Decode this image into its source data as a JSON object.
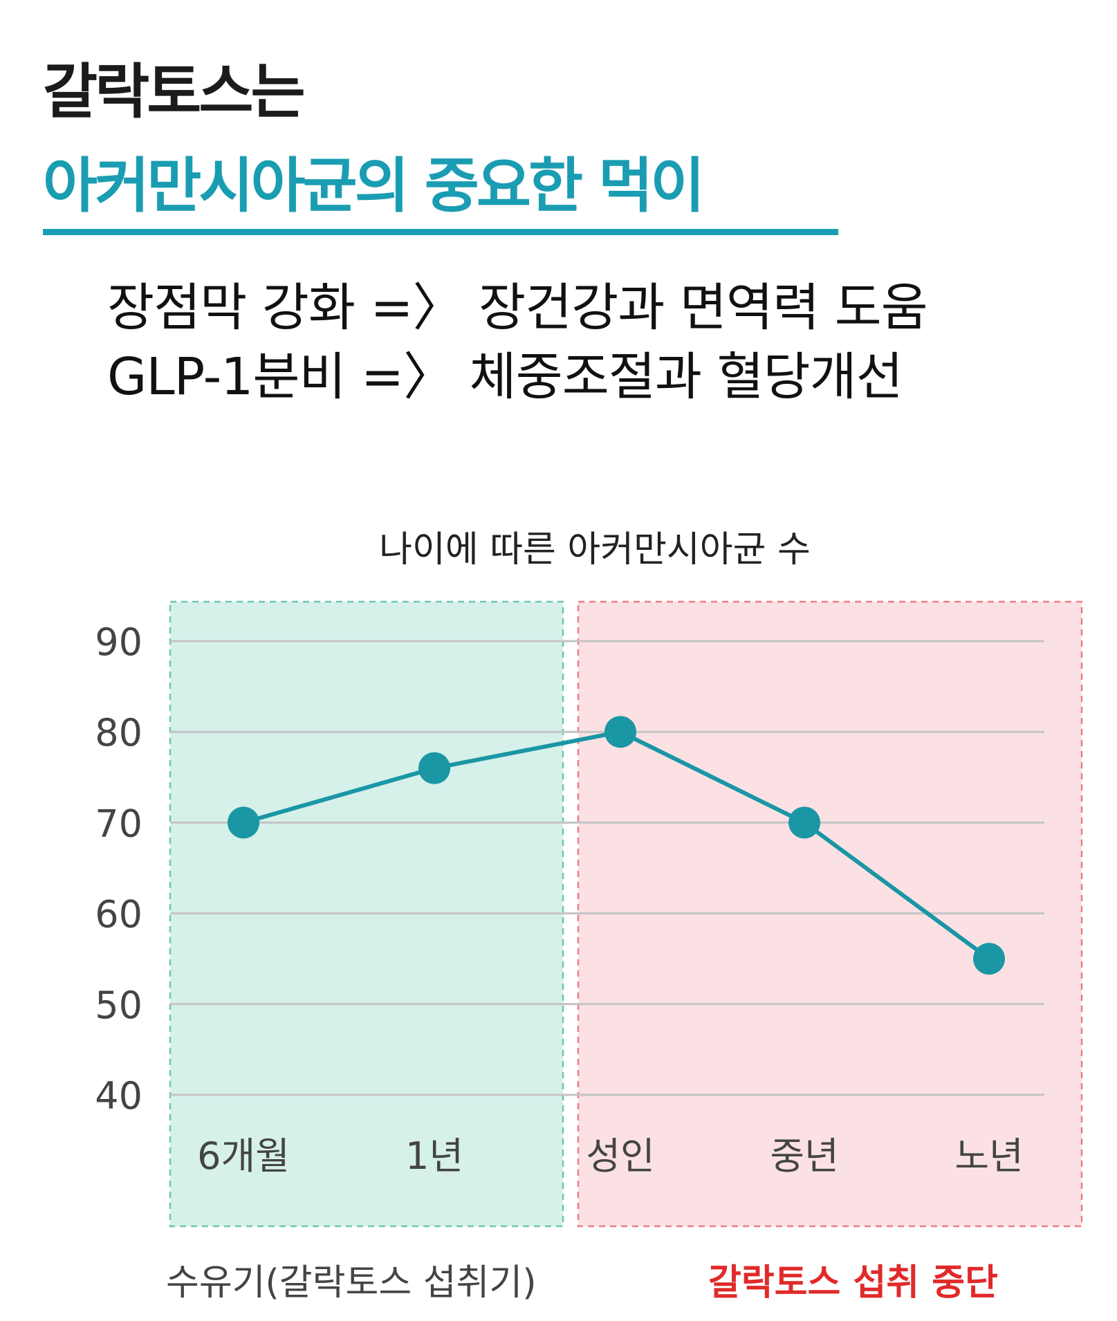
{
  "heading": {
    "line1": "갈락토스는",
    "line2": "아커만시아균의 중요한 먹이"
  },
  "subtitle": {
    "line1": "장점막 강화 =〉 장건강과 면역력 도움",
    "line2": "GLP-1분비 =〉 체중조절과 혈당개선"
  },
  "colors": {
    "accent": "#1a9db2",
    "line": "#1a96a5",
    "green_zone": "#d6f0ea",
    "green_border": "#6cc6b2",
    "red_zone": "#fbe1e3",
    "red_border": "#ec7d84",
    "red_text": "#e02a2a",
    "grid": "#c4c4c4"
  },
  "chart_data": {
    "type": "line",
    "title": "나이에 따른 아커만시아균 수",
    "categories": [
      "6개월",
      "1년",
      "성인",
      "중년",
      "노년"
    ],
    "values": [
      70,
      76,
      80,
      70,
      55
    ],
    "ylim": [
      40,
      90
    ],
    "yticks": [
      "90",
      "80",
      "70",
      "60",
      "50",
      "40"
    ],
    "grid": true,
    "regions": [
      {
        "label": "수유기(갈락토스 섭취기)",
        "categories": [
          "6개월",
          "1년"
        ]
      },
      {
        "label": "갈락토스 섭취 중단",
        "categories": [
          "성인",
          "중년",
          "노년"
        ]
      }
    ]
  }
}
